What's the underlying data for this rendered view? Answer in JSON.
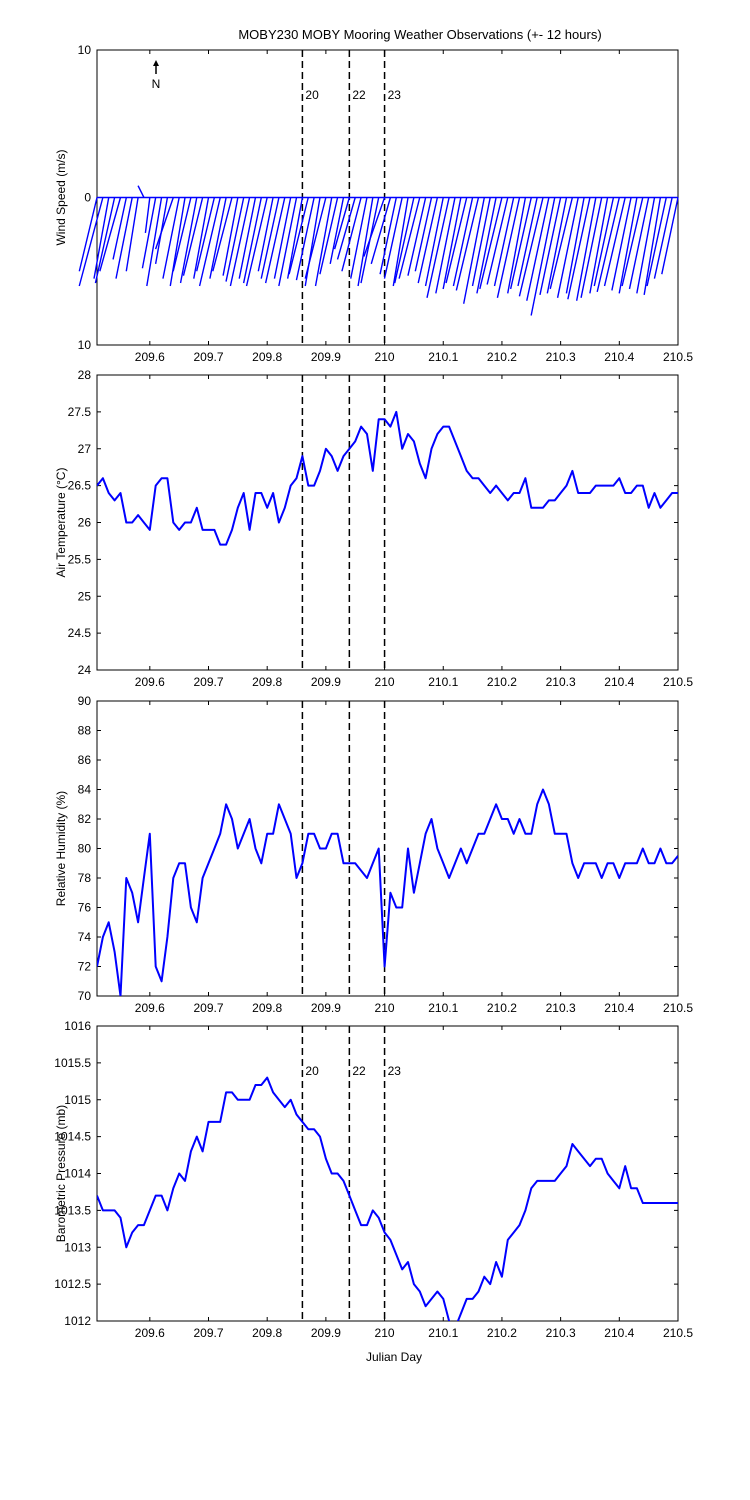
{
  "figure": {
    "title": "MOBY230 MOBY Mooring Weather Observations (+- 12 hours)",
    "xlabel": "Julian Day",
    "north_label": "N",
    "xticks": [
      209.6,
      209.7,
      209.8,
      209.9,
      210,
      210.1,
      210.2,
      210.3,
      210.4,
      210.5
    ],
    "xlim": [
      209.51,
      210.5
    ],
    "event_lines": [
      {
        "label": "20",
        "x": 209.86
      },
      {
        "label": "22",
        "x": 209.94
      },
      {
        "label": "23",
        "x": 210.0
      }
    ],
    "colors": {
      "series": "#0000ff",
      "event_label": "#cc0000",
      "axes": "#000000"
    }
  },
  "chart_data": [
    {
      "type": "line",
      "subtype": "wind-vector",
      "ylabel": "Wind Speed (m/s)",
      "ylim": [
        -10,
        10
      ],
      "yticks": [
        10,
        0,
        10
      ],
      "show_event_labels": true,
      "x": [
        209.51,
        209.52,
        209.53,
        209.54,
        209.55,
        209.56,
        209.57,
        209.58,
        209.59,
        209.6,
        209.61,
        209.62,
        209.63,
        209.64,
        209.65,
        209.66,
        209.67,
        209.68,
        209.69,
        209.7,
        209.71,
        209.72,
        209.73,
        209.74,
        209.75,
        209.76,
        209.77,
        209.78,
        209.79,
        209.8,
        209.81,
        209.82,
        209.83,
        209.84,
        209.85,
        209.86,
        209.87,
        209.88,
        209.89,
        209.9,
        209.91,
        209.92,
        209.93,
        209.94,
        209.95,
        209.96,
        209.97,
        209.98,
        209.99,
        210.0,
        210.01,
        210.02,
        210.03,
        210.04,
        210.05,
        210.06,
        210.07,
        210.08,
        210.09,
        210.1,
        210.11,
        210.12,
        210.13,
        210.14,
        210.15,
        210.16,
        210.17,
        210.18,
        210.19,
        210.2,
        210.21,
        210.22,
        210.23,
        210.24,
        210.25,
        210.26,
        210.27,
        210.28,
        210.29,
        210.3,
        210.31,
        210.32,
        210.33,
        210.34,
        210.35,
        210.36,
        210.37,
        210.38,
        210.39,
        210.4,
        210.41,
        210.42,
        210.43,
        210.44,
        210.45,
        210.46,
        210.47,
        210.48,
        210.49,
        210.5
      ],
      "u": [
        -1.2,
        -1.6,
        -1.0,
        -1.3,
        -1.4,
        -0.9,
        -1.1,
        -0.8,
        -0.4,
        -0.3,
        -0.9,
        -1.0,
        -0.8,
        -1.2,
        -1.1,
        -1.0,
        -1.2,
        -1.1,
        -1.3,
        -1.0,
        -1.2,
        -1.4,
        -1.1,
        -1.3,
        -1.0,
        -1.2,
        -1.3,
        -1.1,
        -1.2,
        -1.4,
        -1.0,
        -1.2,
        -1.3,
        -1.1,
        -1.2,
        -1.0,
        -1.3,
        -1.2,
        -1.0,
        -1.4,
        -1.1,
        -1.2,
        -0.9,
        -1.0,
        -1.2,
        -1.3,
        -1.1,
        -1.0,
        -1.2,
        -1.4,
        -1.3,
        -1.1,
        -1.2,
        -1.0,
        -1.3,
        -1.4,
        -1.2,
        -1.1,
        -1.3,
        -1.2,
        -1.5,
        -1.3,
        -1.2,
        -1.4,
        -1.3,
        -1.5,
        -1.4,
        -1.2,
        -1.3,
        -1.5,
        -1.4,
        -1.3,
        -1.5,
        -1.2,
        -1.4,
        -1.3,
        -1.6,
        -1.5,
        -1.6,
        -1.4,
        -1.3,
        -1.5,
        -1.4,
        -1.2,
        -1.5,
        -1.3,
        -1.4,
        -1.2,
        -1.3,
        -1.5,
        -1.4,
        -1.3,
        -1.2,
        -1.4,
        -1.3,
        -1.2,
        -1.1,
        -1.3,
        -1.2,
        -1.1
      ],
      "v": [
        -5.0,
        -6.0,
        -5.5,
        -5.8,
        -5.0,
        -4.2,
        -5.5,
        -5.0,
        0.8,
        -2.4,
        -4.8,
        -6.0,
        -4.5,
        -3.5,
        -5.5,
        -6.0,
        -5.0,
        -5.8,
        -5.3,
        -5.5,
        -5.0,
        -6.0,
        -5.5,
        -5.0,
        -5.3,
        -5.7,
        -6.0,
        -5.5,
        -5.8,
        -6.0,
        -5.0,
        -5.5,
        -5.8,
        -5.5,
        -6.0,
        -5.5,
        -5.2,
        -5.6,
        -6.0,
        -5.5,
        -6.0,
        -5.2,
        -4.5,
        -3.5,
        -4.2,
        -5.0,
        -5.5,
        -6.0,
        -5.8,
        -4.0,
        -4.5,
        -5.2,
        -5.5,
        -6.0,
        -5.8,
        -5.5,
        -5.3,
        -5.0,
        -5.8,
        -6.0,
        -6.8,
        -6.5,
        -6.2,
        -5.8,
        -6.0,
        -6.3,
        -7.2,
        -6.0,
        -6.5,
        -6.2,
        -5.9,
        -6.0,
        -6.8,
        -6.5,
        -6.2,
        -6.0,
        -6.7,
        -7.0,
        -8.0,
        -6.6,
        -6.5,
        -6.2,
        -6.8,
        -6.5,
        -6.9,
        -7.0,
        -6.8,
        -6.5,
        -6.0,
        -6.4,
        -6.0,
        -6.3,
        -6.5,
        -6.0,
        -6.2,
        -6.5,
        -6.6,
        -6.0,
        -5.5,
        -5.2
      ]
    },
    {
      "type": "line",
      "ylabel": "Air Temperature (°C)",
      "ylim": [
        24,
        28
      ],
      "yticks": [
        24,
        24.5,
        25,
        25.5,
        26,
        26.5,
        27,
        27.5,
        28
      ],
      "show_event_labels": false,
      "x": [
        209.51,
        209.52,
        209.53,
        209.54,
        209.55,
        209.56,
        209.57,
        209.58,
        209.59,
        209.6,
        209.61,
        209.62,
        209.63,
        209.64,
        209.65,
        209.66,
        209.67,
        209.68,
        209.69,
        209.7,
        209.71,
        209.72,
        209.73,
        209.74,
        209.75,
        209.76,
        209.77,
        209.78,
        209.79,
        209.8,
        209.81,
        209.82,
        209.83,
        209.84,
        209.85,
        209.86,
        209.87,
        209.88,
        209.89,
        209.9,
        209.91,
        209.92,
        209.93,
        209.94,
        209.95,
        209.96,
        209.97,
        209.98,
        209.99,
        210.0,
        210.01,
        210.02,
        210.03,
        210.04,
        210.05,
        210.06,
        210.07,
        210.08,
        210.09,
        210.1,
        210.11,
        210.12,
        210.13,
        210.14,
        210.15,
        210.16,
        210.17,
        210.18,
        210.19,
        210.2,
        210.21,
        210.22,
        210.23,
        210.24,
        210.25,
        210.26,
        210.27,
        210.28,
        210.29,
        210.3,
        210.31,
        210.32,
        210.33,
        210.34,
        210.35,
        210.36,
        210.37,
        210.38,
        210.39,
        210.4,
        210.41,
        210.42,
        210.43,
        210.44,
        210.45,
        210.46,
        210.47,
        210.48,
        210.49,
        210.5
      ],
      "y": [
        26.5,
        26.6,
        26.4,
        26.3,
        26.4,
        26.0,
        26.0,
        26.1,
        26.0,
        25.9,
        26.5,
        26.6,
        26.6,
        26.0,
        25.9,
        26.0,
        26.0,
        26.2,
        25.9,
        25.9,
        25.9,
        25.7,
        25.7,
        25.9,
        26.2,
        26.4,
        25.9,
        26.4,
        26.4,
        26.2,
        26.4,
        26.0,
        26.2,
        26.5,
        26.6,
        26.9,
        26.5,
        26.5,
        26.7,
        27.0,
        26.9,
        26.7,
        26.9,
        27.0,
        27.1,
        27.3,
        27.2,
        26.7,
        27.4,
        27.4,
        27.3,
        27.5,
        27.0,
        27.2,
        27.1,
        26.8,
        26.6,
        27.0,
        27.2,
        27.3,
        27.3,
        27.1,
        26.9,
        26.7,
        26.6,
        26.6,
        26.5,
        26.4,
        26.5,
        26.4,
        26.3,
        26.4,
        26.4,
        26.6,
        26.2,
        26.2,
        26.2,
        26.3,
        26.3,
        26.4,
        26.5,
        26.7,
        26.4,
        26.4,
        26.4,
        26.5,
        26.5,
        26.5,
        26.5,
        26.6,
        26.4,
        26.4,
        26.5,
        26.5,
        26.2,
        26.4,
        26.2,
        26.3,
        26.4,
        26.4
      ]
    },
    {
      "type": "line",
      "ylabel": "Relative Humidity (%)",
      "ylim": [
        70,
        90
      ],
      "yticks": [
        70,
        72,
        74,
        76,
        78,
        80,
        82,
        84,
        86,
        88,
        90
      ],
      "show_event_labels": false,
      "x": [
        209.51,
        209.52,
        209.53,
        209.54,
        209.55,
        209.56,
        209.57,
        209.58,
        209.59,
        209.6,
        209.61,
        209.62,
        209.63,
        209.64,
        209.65,
        209.66,
        209.67,
        209.68,
        209.69,
        209.7,
        209.71,
        209.72,
        209.73,
        209.74,
        209.75,
        209.76,
        209.77,
        209.78,
        209.79,
        209.8,
        209.81,
        209.82,
        209.83,
        209.84,
        209.85,
        209.86,
        209.87,
        209.88,
        209.89,
        209.9,
        209.91,
        209.92,
        209.93,
        209.94,
        209.95,
        209.96,
        209.97,
        209.98,
        209.99,
        210.0,
        210.01,
        210.02,
        210.03,
        210.04,
        210.05,
        210.06,
        210.07,
        210.08,
        210.09,
        210.1,
        210.11,
        210.12,
        210.13,
        210.14,
        210.15,
        210.16,
        210.17,
        210.18,
        210.19,
        210.2,
        210.21,
        210.22,
        210.23,
        210.24,
        210.25,
        210.26,
        210.27,
        210.28,
        210.29,
        210.3,
        210.31,
        210.32,
        210.33,
        210.34,
        210.35,
        210.36,
        210.37,
        210.38,
        210.39,
        210.4,
        210.41,
        210.42,
        210.43,
        210.44,
        210.45,
        210.46,
        210.47,
        210.48,
        210.49,
        210.5
      ],
      "y": [
        72.0,
        74.0,
        75.0,
        73.0,
        70.0,
        78.0,
        77.0,
        75.0,
        78.0,
        81.0,
        72.0,
        71.0,
        74.0,
        78.0,
        79.0,
        79.0,
        76.0,
        75.0,
        78.0,
        79.0,
        80.0,
        81.0,
        83.0,
        82.0,
        80.0,
        81.0,
        82.0,
        80.0,
        79.0,
        81.0,
        81.0,
        83.0,
        82.0,
        81.0,
        78.0,
        79.0,
        81.0,
        81.0,
        80.0,
        80.0,
        81.0,
        81.0,
        79.0,
        79.0,
        79.0,
        78.5,
        78.0,
        79.0,
        80.0,
        72.0,
        77.0,
        76.0,
        76.0,
        80.0,
        77.0,
        79.0,
        81.0,
        82.0,
        80.0,
        79.0,
        78.0,
        79.0,
        80.0,
        79.0,
        80.0,
        81.0,
        81.0,
        82.0,
        83.0,
        82.0,
        82.0,
        81.0,
        82.0,
        81.0,
        81.0,
        83.0,
        84.0,
        83.0,
        81.0,
        81.0,
        81.0,
        79.0,
        78.0,
        79.0,
        79.0,
        79.0,
        78.0,
        79.0,
        79.0,
        78.0,
        79.0,
        79.0,
        79.0,
        80.0,
        79.0,
        79.0,
        80.0,
        79.0,
        79.0,
        79.5
      ]
    },
    {
      "type": "line",
      "ylabel": "Barometric Pressure (mb)",
      "xlabel": "Julian Day",
      "ylim": [
        1012,
        1016
      ],
      "yticks": [
        1012,
        1012.5,
        1013,
        1013.5,
        1014,
        1014.5,
        1015,
        1015.5,
        1016
      ],
      "show_event_labels": true,
      "x": [
        209.51,
        209.52,
        209.53,
        209.54,
        209.55,
        209.56,
        209.57,
        209.58,
        209.59,
        209.6,
        209.61,
        209.62,
        209.63,
        209.64,
        209.65,
        209.66,
        209.67,
        209.68,
        209.69,
        209.7,
        209.71,
        209.72,
        209.73,
        209.74,
        209.75,
        209.76,
        209.77,
        209.78,
        209.79,
        209.8,
        209.81,
        209.82,
        209.83,
        209.84,
        209.85,
        209.86,
        209.87,
        209.88,
        209.89,
        209.9,
        209.91,
        209.92,
        209.93,
        209.94,
        209.95,
        209.96,
        209.97,
        209.98,
        209.99,
        210.0,
        210.01,
        210.02,
        210.03,
        210.04,
        210.05,
        210.06,
        210.07,
        210.08,
        210.09,
        210.1,
        210.11,
        210.12,
        210.13,
        210.14,
        210.15,
        210.16,
        210.17,
        210.18,
        210.19,
        210.2,
        210.21,
        210.22,
        210.23,
        210.24,
        210.25,
        210.26,
        210.27,
        210.28,
        210.29,
        210.3,
        210.31,
        210.32,
        210.33,
        210.34,
        210.35,
        210.36,
        210.37,
        210.38,
        210.39,
        210.4,
        210.41,
        210.42,
        210.43,
        210.44,
        210.45,
        210.46,
        210.47,
        210.48,
        210.49,
        210.5
      ],
      "y": [
        1013.7,
        1013.5,
        1013.5,
        1013.5,
        1013.4,
        1013.0,
        1013.2,
        1013.3,
        1013.3,
        1013.5,
        1013.7,
        1013.7,
        1013.5,
        1013.8,
        1014.0,
        1013.9,
        1014.3,
        1014.5,
        1014.3,
        1014.7,
        1014.7,
        1014.7,
        1015.1,
        1015.1,
        1015.0,
        1015.0,
        1015.0,
        1015.2,
        1015.2,
        1015.3,
        1015.1,
        1015.0,
        1014.9,
        1015.0,
        1014.8,
        1014.7,
        1014.6,
        1014.6,
        1014.5,
        1014.2,
        1014.0,
        1014.0,
        1013.9,
        1013.7,
        1013.5,
        1013.3,
        1013.3,
        1013.5,
        1013.4,
        1013.2,
        1013.1,
        1012.9,
        1012.7,
        1012.8,
        1012.5,
        1012.4,
        1012.2,
        1012.3,
        1012.4,
        1012.3,
        1012.0,
        1011.9,
        1012.1,
        1012.3,
        1012.3,
        1012.4,
        1012.6,
        1012.5,
        1012.8,
        1012.6,
        1013.1,
        1013.2,
        1013.3,
        1013.5,
        1013.8,
        1013.9,
        1013.9,
        1013.9,
        1013.9,
        1014.0,
        1014.1,
        1014.4,
        1014.3,
        1014.2,
        1014.1,
        1014.2,
        1014.2,
        1014.0,
        1013.9,
        1013.8,
        1014.1,
        1013.8,
        1013.8,
        1013.6,
        1013.6,
        1013.6,
        1013.6,
        1013.6,
        1013.6,
        1013.6
      ]
    }
  ]
}
